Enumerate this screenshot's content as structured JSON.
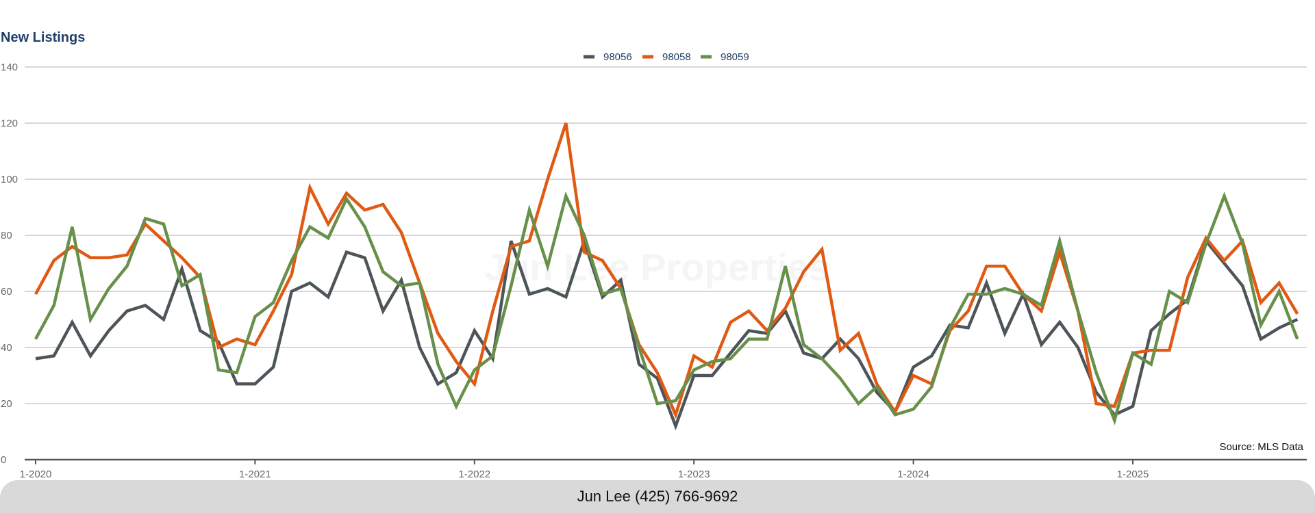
{
  "chart_data": {
    "type": "line",
    "title": "New Listings",
    "xlabel": "",
    "ylabel": "",
    "ylim": [
      0,
      140
    ],
    "yticks": [
      0,
      20,
      40,
      60,
      80,
      100,
      120,
      140
    ],
    "x_start": "2020-01",
    "x_ticks": [
      "1-2020",
      "1-2021",
      "1-2022",
      "1-2023",
      "1-2024",
      "1-2025"
    ],
    "grid": true,
    "legend": "top-center",
    "source": "Source: MLS Data",
    "watermark": "Jun Lee Properties",
    "series": [
      {
        "name": "98056",
        "color": "#4d5559",
        "values": [
          36,
          37,
          49,
          37,
          46,
          53,
          55,
          50,
          68,
          46,
          42,
          27,
          27,
          33,
          60,
          63,
          58,
          74,
          72,
          53,
          64,
          40,
          27,
          31,
          46,
          36,
          78,
          59,
          61,
          58,
          78,
          58,
          64,
          34,
          29,
          12,
          30,
          30,
          38,
          46,
          45,
          53,
          38,
          36,
          43,
          36,
          24,
          17,
          33,
          37,
          48,
          47,
          63,
          45,
          59,
          41,
          49,
          40,
          24,
          16,
          19,
          46,
          52,
          57,
          78,
          70,
          62,
          43,
          47,
          50
        ]
      },
      {
        "name": "98058",
        "color": "#e05a14",
        "values": [
          59,
          71,
          76,
          72,
          72,
          73,
          84,
          78,
          72,
          65,
          40,
          43,
          41,
          53,
          66,
          97,
          84,
          95,
          89,
          91,
          81,
          63,
          45,
          35,
          27,
          53,
          76,
          78,
          100,
          120,
          74,
          71,
          61,
          41,
          31,
          16,
          37,
          33,
          49,
          53,
          46,
          54,
          67,
          75,
          39,
          45,
          27,
          17,
          30,
          27,
          46,
          53,
          69,
          69,
          59,
          53,
          74,
          53,
          20,
          19,
          38,
          39,
          39,
          65,
          79,
          71,
          78,
          56,
          63,
          52
        ]
      },
      {
        "name": "98059",
        "color": "#67904a",
        "values": [
          43,
          55,
          83,
          50,
          61,
          69,
          86,
          84,
          62,
          66,
          32,
          31,
          51,
          56,
          71,
          83,
          79,
          93,
          83,
          67,
          62,
          63,
          34,
          19,
          32,
          37,
          62,
          89,
          69,
          94,
          80,
          59,
          61,
          40,
          20,
          21,
          32,
          35,
          36,
          43,
          43,
          69,
          41,
          36,
          29,
          20,
          26,
          16,
          18,
          26,
          47,
          59,
          59,
          61,
          59,
          55,
          78,
          53,
          31,
          14,
          38,
          34,
          60,
          56,
          77,
          94,
          77,
          48,
          60,
          43
        ]
      }
    ]
  },
  "footer": {
    "contact": "Jun Lee (425) 766-9692"
  }
}
